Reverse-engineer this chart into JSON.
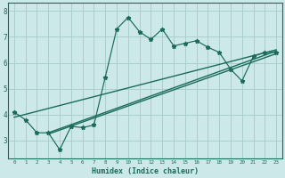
{
  "xlabel": "Humidex (Indice chaleur)",
  "bg_color": "#cce8e8",
  "grid_color": "#aacfcf",
  "line_color": "#1a6b5a",
  "x_data": [
    0,
    1,
    2,
    3,
    4,
    5,
    6,
    7,
    8,
    9,
    10,
    11,
    12,
    13,
    14,
    15,
    16,
    17,
    18,
    19,
    20,
    21,
    22,
    23
  ],
  "y_main": [
    4.1,
    3.8,
    3.3,
    3.3,
    2.65,
    3.55,
    3.5,
    3.6,
    5.45,
    7.3,
    7.75,
    7.2,
    6.9,
    7.3,
    6.65,
    6.75,
    6.85,
    6.6,
    6.4,
    5.75,
    5.3,
    6.25,
    6.4,
    6.4
  ],
  "line1_x": [
    0,
    23
  ],
  "line1_y": [
    3.9,
    6.5
  ],
  "line2_x": [
    3,
    23
  ],
  "line2_y": [
    3.3,
    6.45
  ],
  "line3_x": [
    3,
    23
  ],
  "line3_y": [
    3.25,
    6.35
  ],
  "yticks": [
    3,
    4,
    5,
    6,
    7,
    8
  ],
  "ylim": [
    2.3,
    8.3
  ],
  "xlim": [
    -0.5,
    23.5
  ]
}
